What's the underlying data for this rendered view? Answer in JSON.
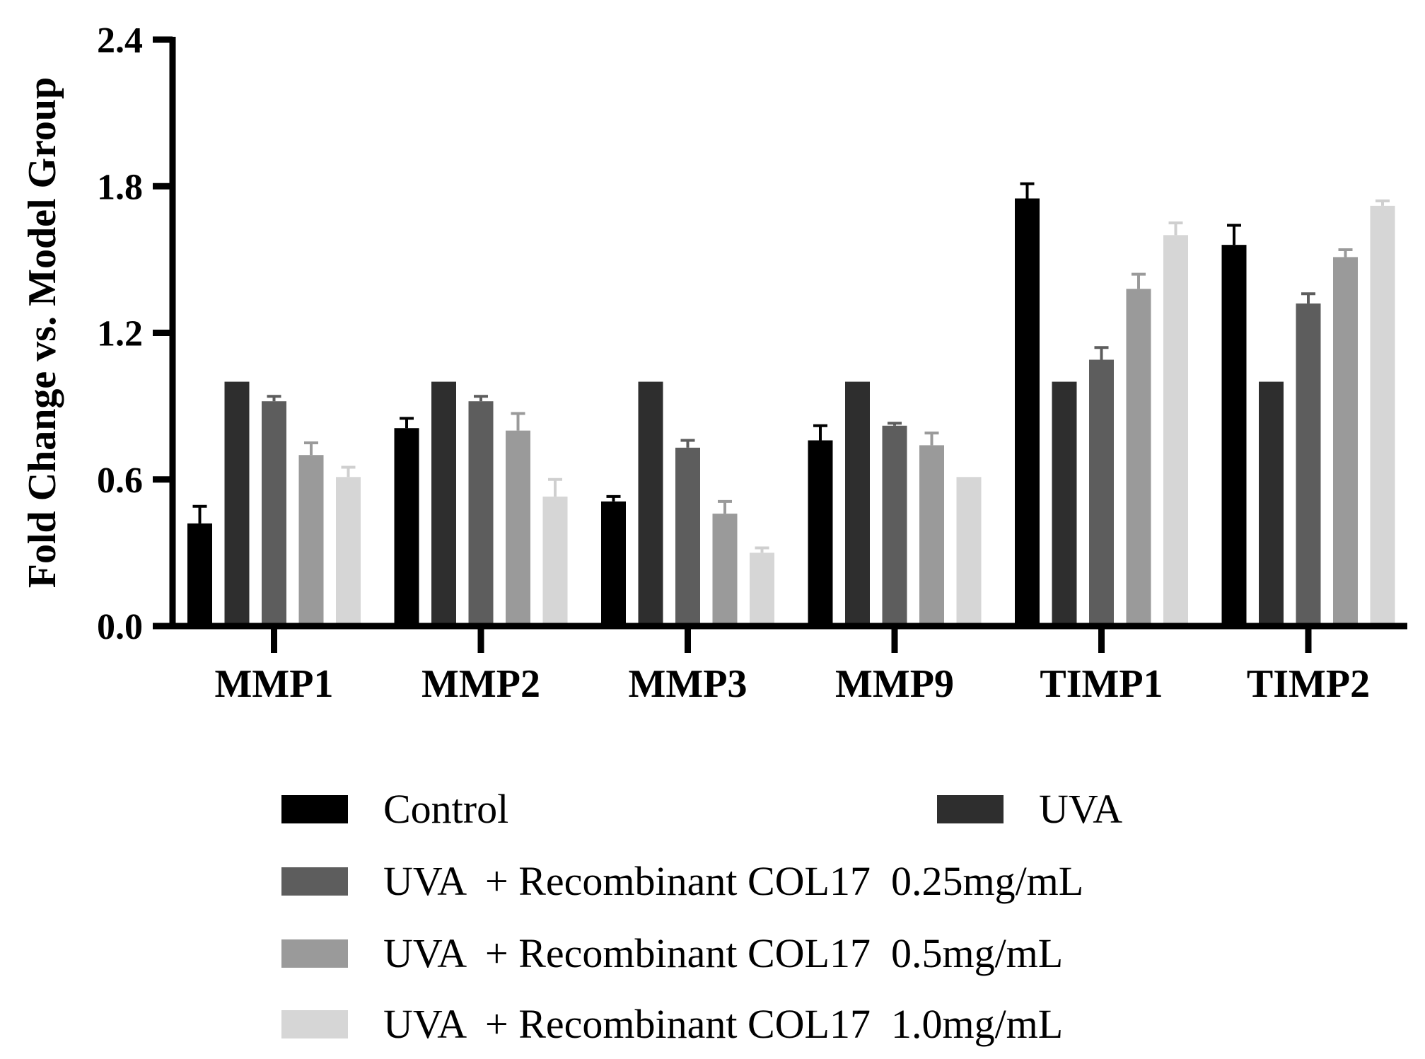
{
  "chart_data": {
    "type": "bar",
    "title": "",
    "xlabel": "",
    "ylabel": "Fold Change vs. Model Group",
    "ylim": [
      0,
      2.4
    ],
    "yticks": [
      "0.0",
      "0.6",
      "1.2",
      "1.8",
      "2.4"
    ],
    "ytick_values": [
      0,
      0.6,
      1.2,
      1.8,
      2.4
    ],
    "categories": [
      "MMP1",
      "MMP2",
      "MMP3",
      "MMP9",
      "TIMP1",
      "TIMP2"
    ],
    "series": [
      {
        "name": "Control",
        "color": "#000000",
        "values": [
          0.42,
          0.81,
          0.51,
          0.76,
          1.75,
          1.56
        ],
        "errors": [
          0.07,
          0.04,
          0.02,
          0.06,
          0.06,
          0.08
        ]
      },
      {
        "name": "UVA",
        "color": "#2e2e2e",
        "values": [
          1.0,
          1.0,
          1.0,
          1.0,
          1.0,
          1.0
        ],
        "errors": [
          0,
          0,
          0,
          0,
          0,
          0
        ]
      },
      {
        "name": "UVA  + Recombinant COL17  0.25mg/mL",
        "color": "#5d5d5d",
        "values": [
          0.92,
          0.92,
          0.73,
          0.82,
          1.09,
          1.32
        ],
        "errors": [
          0.02,
          0.02,
          0.03,
          0.01,
          0.05,
          0.04
        ]
      },
      {
        "name": "UVA  + Recombinant COL17  0.5mg/mL",
        "color": "#9a9a9a",
        "values": [
          0.7,
          0.8,
          0.46,
          0.74,
          1.38,
          1.51
        ],
        "errors": [
          0.05,
          0.07,
          0.05,
          0.05,
          0.06,
          0.03
        ]
      },
      {
        "name": "UVA  + Recombinant COL17  1.0mg/mL",
        "color": "#d6d6d6",
        "values": [
          0.61,
          0.53,
          0.3,
          0.61,
          1.6,
          1.72
        ],
        "errors": [
          0.04,
          0.07,
          0.02,
          0.0,
          0.05,
          0.02
        ]
      }
    ],
    "legend": {
      "labels": [
        "Control",
        "UVA",
        "UVA  + Recombinant COL17  0.25mg/mL",
        "UVA  + Recombinant COL17  0.5mg/mL",
        "UVA  + Recombinant COL17  1.0mg/mL"
      ],
      "placement": "bottom"
    },
    "grid": false
  }
}
